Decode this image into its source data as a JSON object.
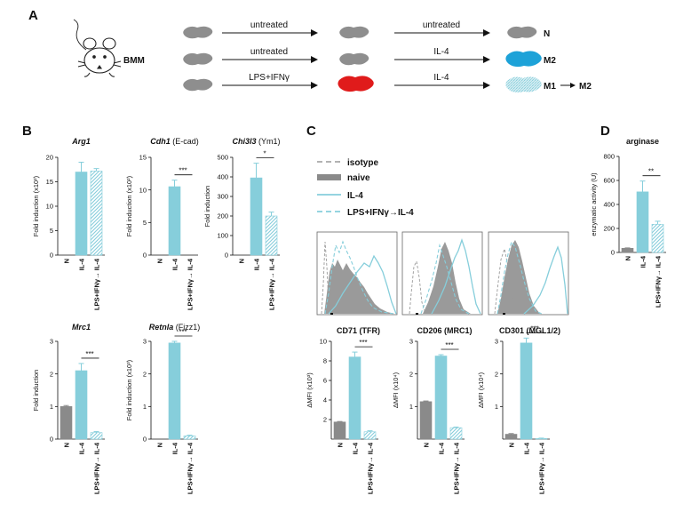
{
  "colors": {
    "naive": "#8a8a8a",
    "il4": "#86cedb",
    "m2_cell": "#1da2d8",
    "m1_cell": "#e01b1b",
    "cell_grey": "#8e8e8e",
    "isotype": "#9a9a9a"
  },
  "panels": {
    "a": "A",
    "b": "B",
    "c": "C",
    "d": "D"
  },
  "scheme": {
    "label": "BMM",
    "rows": [
      {
        "step1": "untreated",
        "step2": "untreated",
        "result": "N"
      },
      {
        "step1": "untreated",
        "step2": "IL-4",
        "result": "M2"
      },
      {
        "step1": "LPS+IFNγ",
        "step2": "IL-4",
        "result_left": "M1",
        "result_right": "M2"
      }
    ]
  },
  "groups": [
    "N",
    "IL-4",
    "LPS+IFNγ→ IL-4"
  ],
  "flow": {
    "legend": [
      {
        "name": "isotype",
        "style": "dashed-grey"
      },
      {
        "name": "naive",
        "style": "filled-grey"
      },
      {
        "name": "IL-4",
        "style": "solid-blue"
      },
      {
        "name": "LPS+IFNγ→IL-4",
        "style": "dashed-blue"
      }
    ]
  },
  "chart_data": [
    {
      "type": "bar",
      "gene": "Arg1",
      "suffix": "",
      "categories": [
        "N",
        "IL-4",
        "LPS+IFNγ→ IL-4"
      ],
      "values": [
        0,
        17,
        17.2
      ],
      "errors": [
        0,
        2,
        0.5
      ],
      "ylabel": "Fold induction (x10²)",
      "ylim": [
        0,
        20
      ],
      "yticks": [
        "0",
        "5",
        "10",
        "15",
        "20"
      ],
      "sig": ""
    },
    {
      "type": "bar",
      "gene": "Cdh1",
      "suffix": " (E-cad)",
      "categories": [
        "N",
        "IL-4",
        "LPS+IFNγ→ IL-4"
      ],
      "values": [
        0,
        10.5,
        0
      ],
      "errors": [
        0,
        1,
        0
      ],
      "ylabel": "Fold induction (x10²)",
      "ylim": [
        0,
        15
      ],
      "yticks": [
        "0",
        "5",
        "10",
        "15"
      ],
      "sig": "***"
    },
    {
      "type": "bar",
      "gene": "Chi3l3",
      "suffix": " (Ym1)",
      "categories": [
        "N",
        "IL-4",
        "LPS+IFNγ→ IL-4"
      ],
      "values": [
        0,
        395,
        200
      ],
      "errors": [
        0,
        75,
        20
      ],
      "ylabel": "Fold induction",
      "ylim": [
        0,
        500
      ],
      "yticks": [
        "0",
        "100",
        "200",
        "300",
        "400",
        "500"
      ],
      "sig": "*"
    },
    {
      "type": "bar",
      "gene": "Mrc1",
      "suffix": "",
      "categories": [
        "N",
        "IL-4",
        "LPS+IFNγ→ IL-4"
      ],
      "values": [
        1,
        2.1,
        0.2
      ],
      "errors": [
        0.03,
        0.22,
        0.03
      ],
      "ylabel": "Fold induction",
      "ylim": [
        0,
        3
      ],
      "yticks": [
        "0",
        "1",
        "2",
        "3"
      ],
      "sig": "***"
    },
    {
      "type": "bar",
      "gene": "Retnla",
      "suffix": " (Fizz1)",
      "categories": [
        "N",
        "IL-4",
        "LPS+IFNγ→ IL-4"
      ],
      "values": [
        0,
        2.95,
        0.1
      ],
      "errors": [
        0,
        0.05,
        0.02
      ],
      "ylabel": "Fold induction (x10³)",
      "ylim": [
        0,
        3
      ],
      "yticks": [
        "0",
        "1",
        "2",
        "3"
      ],
      "sig": "***"
    },
    {
      "type": "bar",
      "gene": "CD71 (TFR)",
      "suffix": "",
      "categories": [
        "N",
        "IL-4",
        "LPS+IFNγ→ IL-4"
      ],
      "values": [
        1.75,
        8.4,
        0.75
      ],
      "errors": [
        0.05,
        0.5,
        0.1
      ],
      "ylabel": "ΔMFI (x10³)",
      "ylim": [
        0,
        10
      ],
      "yticks": [
        "2",
        "4",
        "6",
        "8",
        "10"
      ],
      "sig": "***"
    },
    {
      "type": "bar",
      "gene": "CD206 (MRC1)",
      "suffix": "",
      "categories": [
        "N",
        "IL-4",
        "LPS+IFNγ→ IL-4"
      ],
      "values": [
        1.15,
        2.55,
        0.35
      ],
      "errors": [
        0.02,
        0.04,
        0.02
      ],
      "ylabel": "ΔMFI (x10⁴)",
      "ylim": [
        0,
        3
      ],
      "yticks": [
        "1",
        "2",
        "3"
      ],
      "sig": "***"
    },
    {
      "type": "bar",
      "gene": "CD301 (MGL1/2)",
      "suffix": "",
      "categories": [
        "N",
        "IL-4",
        "LPS+IFNγ→ IL-4"
      ],
      "values": [
        0.15,
        2.95,
        0.02
      ],
      "errors": [
        0.02,
        0.15,
        0.01
      ],
      "ylabel": "ΔMFI (x10⁴)",
      "ylim": [
        0,
        3
      ],
      "yticks": [
        "1",
        "2",
        "3"
      ],
      "sig": "***"
    },
    {
      "type": "bar",
      "gene": "arginase",
      "suffix": "",
      "categories": [
        "N",
        "IL-4",
        "LPS+IFNγ→ IL-4"
      ],
      "values": [
        35,
        505,
        235
      ],
      "errors": [
        3,
        90,
        25
      ],
      "ylabel": "enzymatic activity (U)",
      "ylim": [
        0,
        800
      ],
      "yticks": [
        "0",
        "200",
        "400",
        "600",
        "800"
      ],
      "sig": "**"
    }
  ]
}
